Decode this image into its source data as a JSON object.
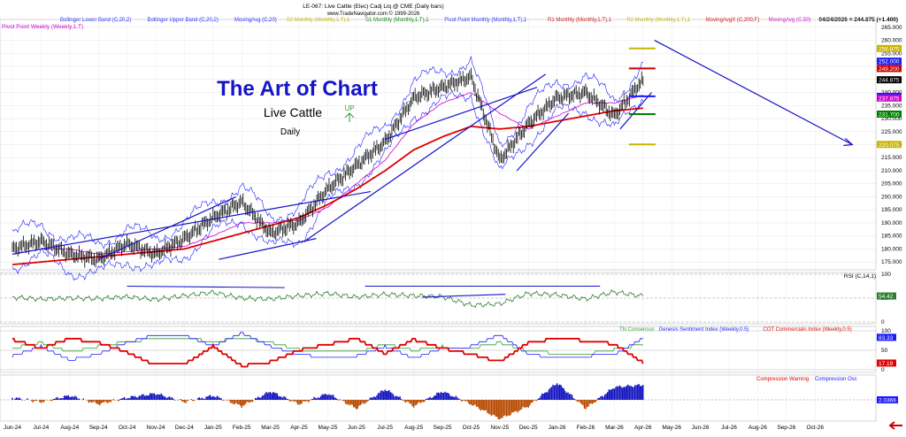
{
  "header": {
    "title": "LE-067: Live Cattle (Elec) Cadj Liq @ CME (Daily bars)",
    "website": "www.TradeNavigator.com © 1999-2026",
    "date_label": "04/24/2026 = 244.875 (+1.400)"
  },
  "legend_main": [
    {
      "label": "Bollinger Lower Band (C,20,2)",
      "color": "#1a1aff"
    },
    {
      "label": "Bollinger Upper Band (C,20,2)",
      "color": "#1a1aff"
    },
    {
      "label": "MovingAvg (C,20)",
      "color": "#1a1aff"
    },
    {
      "label": "S2 Monthly (Monthly,1,T),1",
      "color": "#c8b400"
    },
    {
      "label": "S1 Monthly (Monthly,1,T),1",
      "color": "#008000"
    },
    {
      "label": "Pivot Point Monthly (Monthly,1,T),1",
      "color": "#1a1aff"
    },
    {
      "label": "R1 Monthly (Monthly,1,T),1",
      "color": "#cc0000"
    },
    {
      "label": "R2 Monthly (Monthly,1,T),1",
      "color": "#c8b400"
    },
    {
      "label": "MovingAvgX (C,200,F)",
      "color": "#cc0000"
    },
    {
      "label": "MovingAvg (C,50)",
      "color": "#cc00cc"
    }
  ],
  "legend_weekly": {
    "label": "Pivot Point Weekly (Weekly,1,T)",
    "color": "#cc00cc"
  },
  "overlay_text": {
    "brand": "The Art of Chart",
    "instrument": "Live Cattle",
    "period": "Daily",
    "signal": "UP"
  },
  "colors": {
    "price": "#000000",
    "bollinger": "#1a1aff",
    "ma200": "#dd0000",
    "ma50": "#cc00cc",
    "trendline": "#1414c8",
    "rsi": "#2e7d32",
    "cot": "#e00000",
    "genesis": "#1a1aff",
    "tn": "#2e9e2e",
    "compression_pos": "#1010c0",
    "compression_neg": "#b84a00"
  },
  "x_axis_labels": [
    "Jun-24",
    "Jul-24",
    "Aug-24",
    "Sep-24",
    "Oct-24",
    "Nov-24",
    "Dec-24",
    "Jan-25",
    "Feb-25",
    "Mar-25",
    "Apr-25",
    "May-25",
    "Jun-25",
    "Jul-25",
    "Aug-25",
    "Sep-25",
    "Oct-25",
    "Nov-25",
    "Dec-25",
    "Jan-26",
    "Feb-26",
    "Mar-26",
    "Apr-26",
    "May-26",
    "Jun-26",
    "Jul-26",
    "Aug-26",
    "Sep-26",
    "Oct-26"
  ],
  "chart_data": {
    "type": "line",
    "price_axis": {
      "ticks": [
        175,
        180,
        185,
        190,
        195,
        200,
        205,
        210,
        215,
        220,
        225,
        230,
        235,
        240,
        245,
        250,
        255,
        260,
        265
      ],
      "ylim": [
        172,
        268
      ]
    },
    "price_anchors": {
      "x": [
        "Jun-24",
        "Jul-24",
        "Aug-24",
        "Sep-24",
        "Oct-24",
        "Nov-24",
        "Dec-24",
        "Jan-25",
        "Feb-25",
        "Mar-25",
        "Apr-25",
        "May-25",
        "Jun-25",
        "Jul-25",
        "Aug-25",
        "Sep-25",
        "Oct-25",
        "Nov-25",
        "Dec-25",
        "Jan-26",
        "Feb-26",
        "Mar-26",
        "Apr-26"
      ],
      "close": [
        180,
        183,
        178,
        176,
        182,
        178,
        184,
        192,
        198,
        186,
        190,
        203,
        212,
        221,
        238,
        242,
        246,
        214,
        228,
        238,
        240,
        231,
        245
      ]
    },
    "ma200_anchors": [
      174,
      175,
      176,
      177,
      178,
      179,
      180,
      183,
      186,
      189,
      192,
      197,
      203,
      210,
      218,
      223,
      227,
      226,
      227,
      229,
      231,
      233,
      234
    ],
    "ma50_anchors": [
      178,
      180,
      180,
      178,
      179,
      180,
      181,
      185,
      190,
      190,
      191,
      196,
      205,
      214,
      228,
      236,
      240,
      232,
      226,
      231,
      236,
      236,
      239
    ],
    "price_value_labels": [
      {
        "value": 256.875,
        "color": "#c8b400"
      },
      {
        "value": 252.0,
        "color": "#1a1aff"
      },
      {
        "value": 249.2,
        "color": "#cc0000"
      },
      {
        "value": 244.875,
        "color": "#000000"
      },
      {
        "value": 238.525,
        "color": "#1a1aff"
      },
      {
        "value": 237.875,
        "color": "#cc00cc"
      },
      {
        "value": 231.7,
        "color": "#008000"
      },
      {
        "value": 220.075,
        "color": "#c8b400"
      }
    ],
    "price_value_label_texts": [
      "256.875",
      "252.000",
      "249.200",
      "244.875",
      "238.525",
      "237.875",
      "231.700",
      "220.075"
    ],
    "rsi": {
      "title": "RSI (C,14,1)",
      "ticks": [
        0,
        50,
        100
      ],
      "last": 54.42,
      "last_text": "54.42",
      "anchors": [
        52,
        48,
        50,
        49,
        53,
        47,
        55,
        62,
        50,
        48,
        55,
        60,
        52,
        58,
        55,
        53,
        35,
        38,
        60,
        57,
        48,
        63,
        54
      ]
    },
    "sentiment": {
      "legend": [
        {
          "label": "TN Consensus",
          "color": "#2e9e2e"
        },
        {
          "label": "Genesis Sentiment Index (Weekly,0.5)",
          "color": "#1a1aff"
        },
        {
          "label": "COT Commercials Index (Weekly,0.5)",
          "color": "#e00000"
        }
      ],
      "ticks": [
        0,
        50,
        100
      ],
      "last_values": [
        83.33,
        17.19
      ],
      "last_texts": [
        "83.33",
        "17.19"
      ],
      "cot_anchors": [
        78,
        55,
        80,
        70,
        45,
        12,
        14,
        60,
        10,
        20,
        50,
        65,
        80,
        42,
        78,
        55,
        40,
        20,
        70,
        80,
        75,
        66,
        18
      ],
      "genesis_anchors": [
        35,
        60,
        25,
        40,
        70,
        90,
        88,
        60,
        95,
        60,
        40,
        30,
        35,
        60,
        30,
        55,
        60,
        90,
        40,
        30,
        35,
        40,
        80
      ],
      "tn_anchors": [
        55,
        70,
        45,
        60,
        72,
        80,
        82,
        72,
        82,
        70,
        52,
        50,
        45,
        65,
        50,
        60,
        55,
        70,
        48,
        42,
        40,
        52,
        65
      ]
    },
    "compression": {
      "legend": [
        {
          "label": "Compression Warning",
          "color": "#e00000"
        },
        {
          "label": "Compression Osc",
          "color": "#1a1aff"
        }
      ],
      "last": 2.0366,
      "last_text": "2.0366",
      "anchors": [
        1,
        -1,
        2,
        -2,
        1,
        3,
        -1,
        2,
        -3,
        4,
        -2,
        3,
        -4,
        5,
        -3,
        4,
        -2,
        -9,
        -3,
        8,
        -4,
        6,
        7
      ]
    },
    "title": "LE-067: Live Cattle (Elec) Cadj Liq @ CME (Daily bars)",
    "grid": true
  }
}
